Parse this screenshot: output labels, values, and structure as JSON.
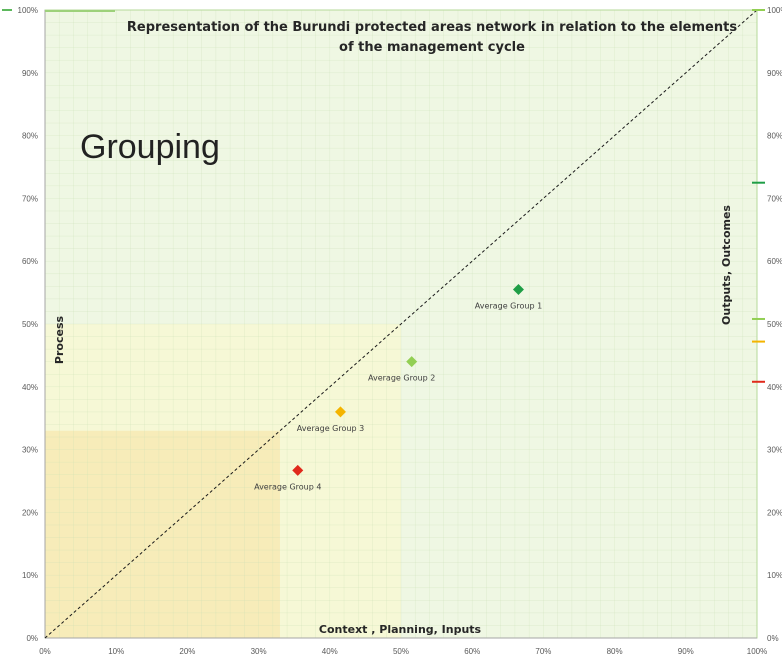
{
  "chart_data": {
    "type": "scatter",
    "title_line1": "Representation of the Burundi protected areas network in relation to the elements",
    "title_line2": "of the management cycle",
    "annotation": "Grouping",
    "xlabel": "Context , Planning, Inputs",
    "ylabel_left": "Process",
    "ylabel_right": "Outputs, Outcomes",
    "xlim": [
      0,
      100
    ],
    "ylim": [
      0,
      100
    ],
    "x_ticks": [
      "0%",
      "10%",
      "20%",
      "30%",
      "40%",
      "50%",
      "60%",
      "70%",
      "80%",
      "90%",
      "100%"
    ],
    "y_ticks_left": [
      "0%",
      "10%",
      "20%",
      "30%",
      "40%",
      "50%",
      "60%",
      "70%",
      "80%",
      "90%",
      "100%"
    ],
    "y_ticks_right": [
      "0%",
      "10%",
      "20%",
      "30%",
      "40%",
      "50%",
      "60%",
      "70%",
      "80%",
      "90%",
      "100%"
    ],
    "diagonal_reference": true,
    "zones": [
      {
        "x_max": 100,
        "y_max": 100,
        "color": "#eff7e3"
      },
      {
        "x_max": 50,
        "y_max": 50,
        "color": "#f6f8d6"
      },
      {
        "x_max": 33,
        "y_max": 33,
        "color": "#f7ecb9"
      }
    ],
    "series": [
      {
        "name": "Average Group 1",
        "x": 66.5,
        "y": 55.5,
        "color": "#1f9e46"
      },
      {
        "name": "Average Group 2",
        "x": 51.5,
        "y": 44,
        "color": "#92cf53"
      },
      {
        "name": "Average Group 3",
        "x": 41.5,
        "y": 36,
        "color": "#f4b400"
      },
      {
        "name": "Average Group 4",
        "x": 35.5,
        "y": 26.7,
        "color": "#e0291b"
      }
    ],
    "right_markers": [
      {
        "y": 72.5,
        "color": "#1f9e46"
      },
      {
        "y": 50.8,
        "color": "#92cf53"
      },
      {
        "y": 47.2,
        "color": "#f4b400"
      },
      {
        "y": 40.8,
        "color": "#e0291b"
      },
      {
        "y": 100,
        "color": "#92cf53"
      }
    ]
  }
}
